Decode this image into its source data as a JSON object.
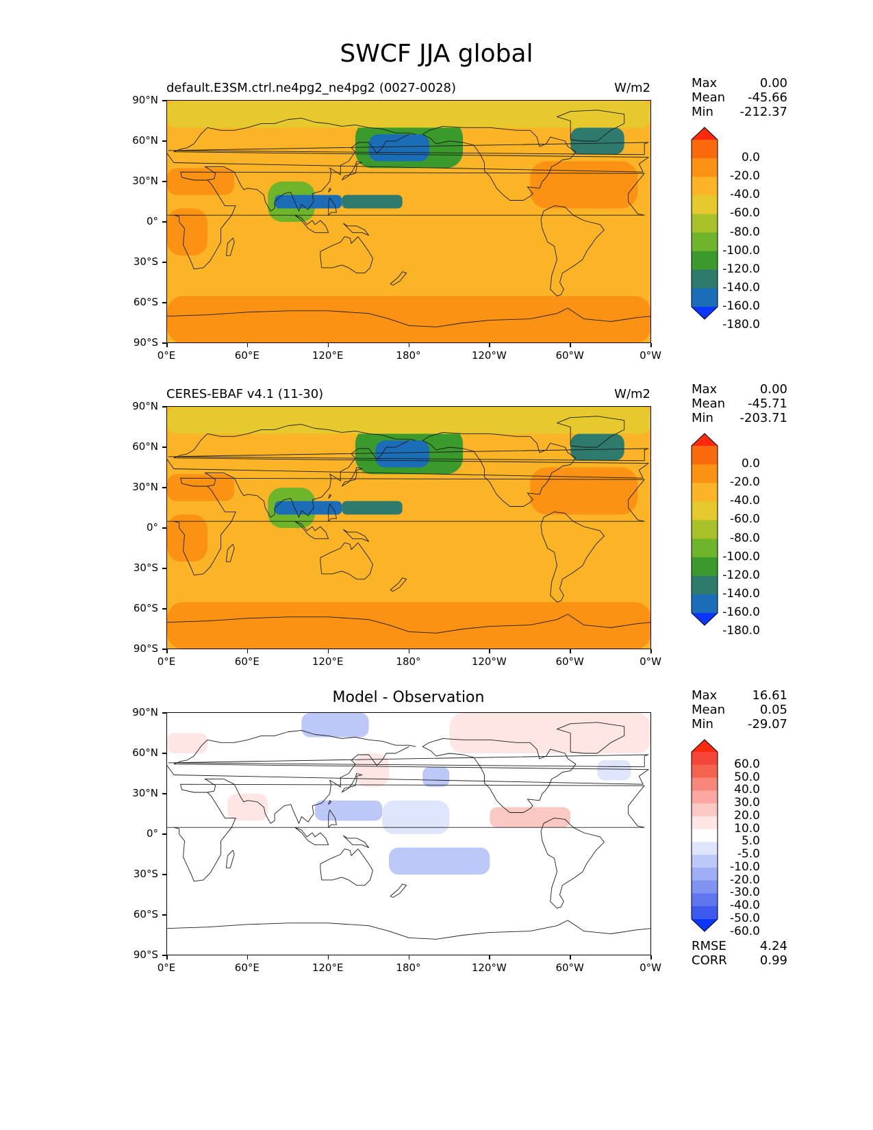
{
  "title": "SWCF JJA global",
  "x_ticks": [
    "0°E",
    "60°E",
    "120°E",
    "180°",
    "120°W",
    "60°W",
    "0°W"
  ],
  "y_ticks": [
    "90°N",
    "60°N",
    "30°N",
    "0°",
    "30°S",
    "60°S",
    "90°S"
  ],
  "panels": [
    {
      "left_title": "default.E3SM.ctrl.ne4pg2_ne4pg2 (0027-0028)",
      "center_title": "",
      "right_title": "W/m2",
      "stats": [
        {
          "label": "Max",
          "value": "0.00"
        },
        {
          "label": "Mean",
          "value": "-45.66"
        },
        {
          "label": "Min",
          "value": "-212.37"
        }
      ],
      "colorbar": {
        "labels": [
          "0.0",
          "-20.0",
          "-40.0",
          "-60.0",
          "-80.0",
          "-100.0",
          "-120.0",
          "-140.0",
          "-160.0",
          "-180.0"
        ],
        "colors": [
          "#ff2a0e",
          "#fa6a0d",
          "#fb9214",
          "#fab426",
          "#e6c92c",
          "#a8c128",
          "#6fb52b",
          "#3a9a2b",
          "#2e7b6e",
          "#1b6db8",
          "#0a36ff"
        ]
      }
    },
    {
      "left_title": "CERES-EBAF v4.1 (11-30)",
      "center_title": "",
      "right_title": "W/m2",
      "stats": [
        {
          "label": "Max",
          "value": "0.00"
        },
        {
          "label": "Mean",
          "value": "-45.71"
        },
        {
          "label": "Min",
          "value": "-203.71"
        }
      ],
      "colorbar": {
        "labels": [
          "0.0",
          "-20.0",
          "-40.0",
          "-60.0",
          "-80.0",
          "-100.0",
          "-120.0",
          "-140.0",
          "-160.0",
          "-180.0"
        ],
        "colors": [
          "#ff2a0e",
          "#fa6a0d",
          "#fb9214",
          "#fab426",
          "#e6c92c",
          "#a8c128",
          "#6fb52b",
          "#3a9a2b",
          "#2e7b6e",
          "#1b6db8",
          "#0a36ff"
        ]
      }
    },
    {
      "left_title": "",
      "center_title": "Model - Observation",
      "right_title": "",
      "stats": [
        {
          "label": "Max",
          "value": "16.61"
        },
        {
          "label": "Mean",
          "value": "0.05"
        },
        {
          "label": "Min",
          "value": "-29.07"
        }
      ],
      "extra_stats": [
        {
          "label": "RMSE",
          "value": "4.24"
        },
        {
          "label": "CORR",
          "value": "0.99"
        }
      ],
      "colorbar": {
        "labels": [
          "60.0",
          "50.0",
          "40.0",
          "30.0",
          "20.0",
          "10.0",
          "5.0",
          "-5.0",
          "-10.0",
          "-20.0",
          "-30.0",
          "-40.0",
          "-50.0",
          "-60.0"
        ],
        "colors": [
          "#ff2a0e",
          "#f4453a",
          "#f5634f",
          "#f7877a",
          "#f9a7a0",
          "#fbc9c4",
          "#fde6e3",
          "#ffffff",
          "#dfe5fb",
          "#bcc8f7",
          "#9eaef4",
          "#7f93f1",
          "#5f76ee",
          "#3e5aee",
          "#0a36ff"
        ]
      }
    }
  ],
  "chart_data": [
    {
      "type": "heatmap",
      "title": "SWCF JJA global",
      "subtitle": "default.E3SM.ctrl.ne4pg2_ne4pg2 (0027-0028)",
      "units": "W/m2",
      "xlim": [
        0,
        360
      ],
      "ylim": [
        -90,
        90
      ],
      "levels": [
        -180,
        -160,
        -140,
        -120,
        -100,
        -80,
        -60,
        -40,
        -20,
        0
      ],
      "stats": {
        "max": 0.0,
        "mean": -45.66,
        "min": -212.37
      },
      "field_regions": [
        {
          "lon_range": [
            0,
            360
          ],
          "lat_range": [
            -90,
            90
          ],
          "value": -45
        },
        {
          "lon_range": [
            0,
            360
          ],
          "lat_range": [
            -90,
            -55
          ],
          "value": -25
        },
        {
          "lon_range": [
            0,
            360
          ],
          "lat_range": [
            -55,
            -35
          ],
          "value": -45
        },
        {
          "lon_range": [
            0,
            30
          ],
          "lat_range": [
            -25,
            10
          ],
          "value": -25
        },
        {
          "lon_range": [
            0,
            50
          ],
          "lat_range": [
            20,
            40
          ],
          "value": -25
        },
        {
          "lon_range": [
            75,
            110
          ],
          "lat_range": [
            0,
            30
          ],
          "value": -110
        },
        {
          "lon_range": [
            80,
            130
          ],
          "lat_range": [
            10,
            20
          ],
          "value": -170
        },
        {
          "lon_range": [
            130,
            175
          ],
          "lat_range": [
            10,
            20
          ],
          "value": -150
        },
        {
          "lon_range": [
            140,
            220
          ],
          "lat_range": [
            40,
            75
          ],
          "value": -130
        },
        {
          "lon_range": [
            150,
            195
          ],
          "lat_range": [
            45,
            65
          ],
          "value": -165
        },
        {
          "lon_range": [
            270,
            350
          ],
          "lat_range": [
            10,
            45
          ],
          "value": -25
        },
        {
          "lon_range": [
            300,
            340
          ],
          "lat_range": [
            50,
            70
          ],
          "value": -150
        },
        {
          "lon_range": [
            0,
            360
          ],
          "lat_range": [
            70,
            90
          ],
          "value": -65
        }
      ]
    },
    {
      "type": "heatmap",
      "title": "SWCF JJA global",
      "subtitle": "CERES-EBAF v4.1 (11-30)",
      "units": "W/m2",
      "xlim": [
        0,
        360
      ],
      "ylim": [
        -90,
        90
      ],
      "levels": [
        -180,
        -160,
        -140,
        -120,
        -100,
        -80,
        -60,
        -40,
        -20,
        0
      ],
      "stats": {
        "max": 0.0,
        "mean": -45.71,
        "min": -203.71
      },
      "field_regions": [
        {
          "lon_range": [
            0,
            360
          ],
          "lat_range": [
            -90,
            90
          ],
          "value": -45
        },
        {
          "lon_range": [
            0,
            360
          ],
          "lat_range": [
            -90,
            -55
          ],
          "value": -25
        },
        {
          "lon_range": [
            0,
            360
          ],
          "lat_range": [
            -55,
            -35
          ],
          "value": -45
        },
        {
          "lon_range": [
            0,
            30
          ],
          "lat_range": [
            -25,
            10
          ],
          "value": -25
        },
        {
          "lon_range": [
            0,
            50
          ],
          "lat_range": [
            20,
            40
          ],
          "value": -25
        },
        {
          "lon_range": [
            75,
            110
          ],
          "lat_range": [
            0,
            30
          ],
          "value": -110
        },
        {
          "lon_range": [
            80,
            130
          ],
          "lat_range": [
            10,
            20
          ],
          "value": -170
        },
        {
          "lon_range": [
            130,
            175
          ],
          "lat_range": [
            10,
            20
          ],
          "value": -150
        },
        {
          "lon_range": [
            140,
            220
          ],
          "lat_range": [
            40,
            75
          ],
          "value": -130
        },
        {
          "lon_range": [
            155,
            195
          ],
          "lat_range": [
            45,
            65
          ],
          "value": -165
        },
        {
          "lon_range": [
            270,
            350
          ],
          "lat_range": [
            10,
            45
          ],
          "value": -25
        },
        {
          "lon_range": [
            300,
            340
          ],
          "lat_range": [
            50,
            70
          ],
          "value": -150
        },
        {
          "lon_range": [
            0,
            360
          ],
          "lat_range": [
            70,
            90
          ],
          "value": -65
        }
      ]
    },
    {
      "type": "heatmap",
      "title": "Model - Observation",
      "units": "W/m2",
      "xlim": [
        0,
        360
      ],
      "ylim": [
        -90,
        90
      ],
      "levels": [
        -60,
        -50,
        -40,
        -30,
        -20,
        -10,
        -5,
        5,
        10,
        20,
        30,
        40,
        50,
        60
      ],
      "stats": {
        "max": 16.61,
        "mean": 0.05,
        "min": -29.07,
        "rmse": 4.24,
        "corr": 0.99
      },
      "field_regions": [
        {
          "lon_range": [
            0,
            360
          ],
          "lat_range": [
            -90,
            90
          ],
          "value": 0
        },
        {
          "lon_range": [
            100,
            150
          ],
          "lat_range": [
            72,
            90
          ],
          "value": -12
        },
        {
          "lon_range": [
            210,
            360
          ],
          "lat_range": [
            60,
            90
          ],
          "value": 7
        },
        {
          "lon_range": [
            0,
            30
          ],
          "lat_range": [
            60,
            75
          ],
          "value": 7
        },
        {
          "lon_range": [
            140,
            165
          ],
          "lat_range": [
            35,
            60
          ],
          "value": 8
        },
        {
          "lon_range": [
            190,
            210
          ],
          "lat_range": [
            35,
            50
          ],
          "value": -15
        },
        {
          "lon_range": [
            110,
            160
          ],
          "lat_range": [
            10,
            25
          ],
          "value": -12
        },
        {
          "lon_range": [
            160,
            210
          ],
          "lat_range": [
            0,
            25
          ],
          "value": -8
        },
        {
          "lon_range": [
            165,
            240
          ],
          "lat_range": [
            -30,
            -10
          ],
          "value": -10
        },
        {
          "lon_range": [
            240,
            300
          ],
          "lat_range": [
            5,
            20
          ],
          "value": 12
        },
        {
          "lon_range": [
            45,
            75
          ],
          "lat_range": [
            10,
            30
          ],
          "value": 8
        },
        {
          "lon_range": [
            320,
            345
          ],
          "lat_range": [
            40,
            55
          ],
          "value": -7
        }
      ]
    }
  ]
}
